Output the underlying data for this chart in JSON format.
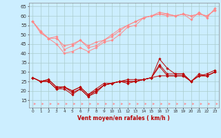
{
  "x": [
    0,
    1,
    2,
    3,
    4,
    5,
    6,
    7,
    8,
    9,
    10,
    11,
    12,
    13,
    14,
    15,
    16,
    17,
    18,
    19,
    20,
    21,
    22,
    23
  ],
  "series_light": [
    [
      57,
      51,
      48,
      45,
      40,
      41,
      43,
      41,
      43,
      46,
      47,
      50,
      54,
      55,
      59,
      60,
      62,
      61,
      60,
      61,
      58,
      62,
      59,
      64
    ],
    [
      57,
      51,
      48,
      49,
      42,
      44,
      47,
      43,
      44,
      47,
      49,
      52,
      55,
      57,
      59,
      60,
      61,
      60,
      60,
      61,
      60,
      61,
      60,
      63
    ],
    [
      57,
      52,
      48,
      48,
      44,
      45,
      47,
      44,
      46,
      47,
      50,
      53,
      55,
      57,
      59,
      60,
      61,
      61,
      60,
      61,
      60,
      61,
      60,
      63
    ]
  ],
  "series_dark": [
    [
      27,
      25,
      25,
      21,
      21,
      18,
      21,
      17,
      19,
      23,
      24,
      25,
      24,
      25,
      26,
      27,
      34,
      29,
      29,
      29,
      25,
      28,
      29,
      31
    ],
    [
      27,
      25,
      25,
      21,
      22,
      19,
      21,
      17,
      20,
      23,
      24,
      25,
      25,
      25,
      26,
      27,
      33,
      28,
      28,
      28,
      25,
      28,
      28,
      30
    ],
    [
      27,
      25,
      26,
      22,
      22,
      20,
      22,
      18,
      20,
      23,
      24,
      25,
      25,
      25,
      26,
      27,
      37,
      32,
      29,
      29,
      25,
      29,
      28,
      30
    ],
    [
      27,
      25,
      26,
      22,
      22,
      20,
      22,
      18,
      21,
      24,
      24,
      25,
      26,
      26,
      26,
      27,
      28,
      28,
      28,
      28,
      25,
      28,
      28,
      30
    ]
  ],
  "xlabel": "Vent moyen/en rafales ( km/h )",
  "yticks": [
    15,
    20,
    25,
    30,
    35,
    40,
    45,
    50,
    55,
    60,
    65
  ],
  "ylim": [
    11,
    67
  ],
  "xlim": [
    -0.5,
    23.5
  ],
  "bg_color": "#cceeff",
  "light_color": "#ff8888",
  "dark_color": "#bb0000",
  "arrow_color": "#ff8888",
  "grid_color": "#aacccc"
}
